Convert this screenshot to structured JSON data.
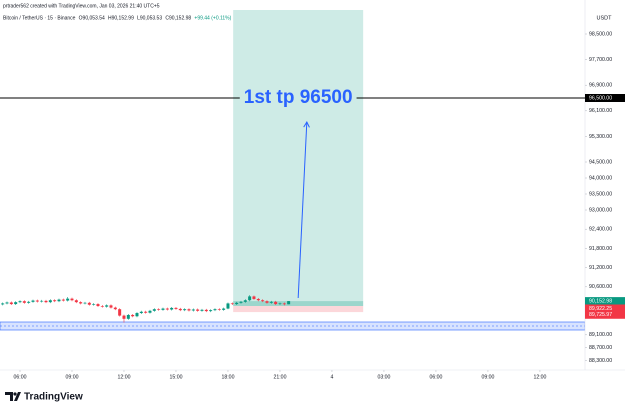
{
  "chart_data": {
    "type": "candlestick",
    "author_line": "prtrader562 created with TradingView.com, Jan 03, 2026 21:40 UTC+5",
    "symbol_line": "Bitcoin / TetherUS · 15 · Binance",
    "ohlc": {
      "o": "O90,053.54",
      "h": "H90,152.99",
      "l": "L90,053.53",
      "c": "C90,152.98",
      "change": "+99.44 (+0.11%)"
    },
    "currency": "USDT",
    "brand": "TradingView",
    "up_color": "#089981",
    "down_color": "#f23645",
    "x": [
      5,
      5.25,
      5.5,
      5.75,
      6,
      6.25,
      6.5,
      6.75,
      7,
      7.25,
      7.5,
      7.75,
      8,
      8.25,
      8.5,
      8.75,
      9,
      9.25,
      9.5,
      9.75,
      10,
      10.25,
      10.5,
      10.75,
      11,
      11.25,
      11.5,
      11.75,
      12,
      12.25,
      12.5,
      12.75,
      13,
      13.25,
      13.5,
      13.75,
      14,
      14.25,
      14.5,
      14.75,
      15,
      15.25,
      15.5,
      15.75,
      16,
      16.25,
      16.5,
      16.75,
      17,
      17.25,
      17.5,
      17.75,
      18,
      18.25,
      18.5,
      18.75,
      19,
      19.25,
      19.5,
      19.75,
      20,
      20.25,
      20.5,
      20.75,
      21,
      21.25,
      21.5
    ],
    "open": [
      90050,
      90080,
      90110,
      90060,
      90120,
      90150,
      90100,
      90130,
      90170,
      90140,
      90160,
      90120,
      90180,
      90150,
      90200,
      90170,
      90230,
      90180,
      90120,
      90080,
      90100,
      90040,
      90060,
      90000,
      89980,
      90020,
      89950,
      89900,
      89700,
      89600,
      89720,
      89680,
      89780,
      89820,
      89790,
      89850,
      89900,
      89880,
      89920,
      89890,
      89940,
      89910,
      89870,
      89900,
      89860,
      89890,
      89850,
      89880,
      89840,
      89870,
      89900,
      89880,
      89920,
      90080,
      90060,
      90100,
      90130,
      90180,
      90300,
      90220,
      90180,
      90150,
      90100,
      90130,
      90060,
      90080,
      90053.54
    ],
    "high": [
      90110,
      90140,
      90140,
      90150,
      90180,
      90180,
      90160,
      90200,
      90200,
      90190,
      90190,
      90210,
      90210,
      90230,
      90230,
      90280,
      90260,
      90210,
      90150,
      90130,
      90130,
      90090,
      90090,
      90030,
      90050,
      90050,
      89980,
      89930,
      89730,
      89750,
      89750,
      89810,
      89850,
      89850,
      89880,
      89930,
      89930,
      89950,
      89950,
      89970,
      89970,
      89940,
      89930,
      89930,
      89920,
      89920,
      89910,
      89910,
      89900,
      89930,
      89930,
      89950,
      90110,
      90110,
      90130,
      90160,
      90210,
      90340,
      90330,
      90250,
      90210,
      90180,
      90160,
      90160,
      90110,
      90110,
      90152.99
    ],
    "low": [
      90020,
      90050,
      90030,
      90030,
      90090,
      90070,
      90070,
      90100,
      90110,
      90110,
      90090,
      90090,
      90120,
      90120,
      90140,
      90140,
      90150,
      90090,
      90050,
      90050,
      90010,
      90010,
      89970,
      89950,
      89950,
      89920,
      89870,
      89670,
      89480,
      89570,
      89650,
      89650,
      89750,
      89760,
      89760,
      89820,
      89850,
      89850,
      89860,
      89860,
      89880,
      89840,
      89840,
      89830,
      89830,
      89820,
      89820,
      89810,
      89810,
      89840,
      89850,
      89850,
      89900,
      90030,
      90030,
      90070,
      90100,
      90150,
      90190,
      90150,
      90120,
      90070,
      90070,
      90030,
      90030,
      90020,
      90053.53
    ],
    "close": [
      90080,
      90110,
      90060,
      90120,
      90150,
      90100,
      90130,
      90170,
      90140,
      90160,
      90120,
      90180,
      90150,
      90200,
      90170,
      90230,
      90180,
      90120,
      90080,
      90100,
      90040,
      90060,
      90000,
      89980,
      90020,
      89950,
      89900,
      89700,
      89600,
      89720,
      89680,
      89780,
      89820,
      89790,
      89850,
      89900,
      89880,
      89920,
      89890,
      89940,
      89910,
      89870,
      89900,
      89860,
      89890,
      89850,
      89880,
      89840,
      89870,
      89900,
      89880,
      89920,
      90080,
      90060,
      90100,
      90130,
      90180,
      90300,
      90220,
      90180,
      90150,
      90100,
      90130,
      90060,
      90080,
      90053.54,
      90152.98
    ],
    "xlim": [
      4.846,
      38.6
    ],
    "xticks": [
      {
        "value": 6,
        "label": "06:00"
      },
      {
        "value": 9,
        "label": "09:00"
      },
      {
        "value": 12,
        "label": "12:00"
      },
      {
        "value": 15,
        "label": "15:00"
      },
      {
        "value": 18,
        "label": "18:00"
      },
      {
        "value": 21,
        "label": "21:00"
      },
      {
        "value": 24,
        "label": "4"
      },
      {
        "value": 27,
        "label": "03:00"
      },
      {
        "value": 30,
        "label": "06:00"
      },
      {
        "value": 33,
        "label": "09:00"
      },
      {
        "value": 36,
        "label": "12:00"
      }
    ],
    "ylim": [
      88000,
      99250
    ],
    "yticks": [
      {
        "value": 98500,
        "label": "98,500.00"
      },
      {
        "value": 97700,
        "label": "97,700.00"
      },
      {
        "value": 96900,
        "label": "96,900.00"
      },
      {
        "value": 96100,
        "label": "96,100.00"
      },
      {
        "value": 95300,
        "label": "95,300.00"
      },
      {
        "value": 94500,
        "label": "94,500.00"
      },
      {
        "value": 94000,
        "label": "94,000.00"
      },
      {
        "value": 93500,
        "label": "93,500.00"
      },
      {
        "value": 93000,
        "label": "93,000.00"
      },
      {
        "value": 92400,
        "label": "92,400.00"
      },
      {
        "value": 91800,
        "label": "91,800.00"
      },
      {
        "value": 91200,
        "label": "91,200.00"
      },
      {
        "value": 90600,
        "label": "90,600.00"
      },
      {
        "value": 89100,
        "label": "89,100.00"
      },
      {
        "value": 88700,
        "label": "88,700.00"
      },
      {
        "value": 88300,
        "label": "88,300.00"
      }
    ],
    "hline": {
      "value": 96500,
      "label": "96,500.00",
      "text": "1st tp 96500",
      "color": "#000000",
      "text_color": "#2962ff"
    },
    "price_labels": [
      {
        "value": 90152.98,
        "label": "90,152.98",
        "color": "#089981"
      },
      {
        "value": 89922.25,
        "label": "89,922.25",
        "color": "#f23645"
      },
      {
        "value": 89725.97,
        "label": "89,725.97",
        "color": "#f23645"
      }
    ],
    "countdown": "04:51",
    "position": {
      "x": [
        18.3,
        25.8
      ],
      "target": 99500,
      "entry": 90000,
      "stop": 89810
    },
    "zone": {
      "values": [
        89250,
        89500
      ],
      "color": "#2962ff"
    },
    "arrow": {
      "x": [
        22.05,
        22.55
      ],
      "y": [
        90250,
        95750
      ],
      "color": "#2962ff"
    }
  }
}
